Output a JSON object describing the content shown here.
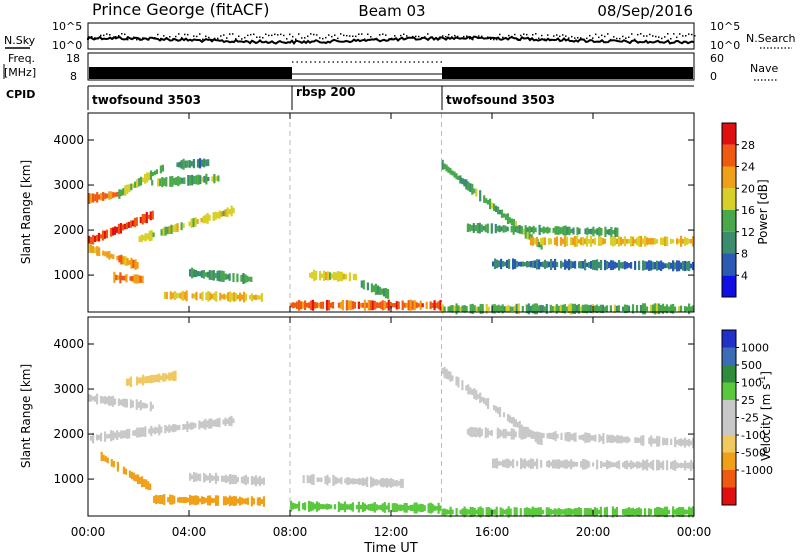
{
  "header": {
    "station": "Prince George (fitACF)",
    "beam": "Beam 03",
    "date": "08/Sep/2016"
  },
  "left_labels": {
    "nsky": "N.Sky",
    "freq_line1": "Freq.",
    "freq_line2": "[MHz]",
    "cpid": "CPID"
  },
  "right_labels": {
    "nsearch": "N.Search",
    "nave": "Nave"
  },
  "noise_axis": {
    "top": "10^5",
    "bottom": "10^0"
  },
  "freq_axis": {
    "top": "18",
    "bottom": "8"
  },
  "nave_axis": {
    "top": "60",
    "bottom": "0"
  },
  "cpid_segments": [
    {
      "label": "twofsound 3503",
      "start_hour": 0,
      "end_hour": 8
    },
    {
      "label": "rbsp 200",
      "start_hour": 8,
      "end_hour": 14
    },
    {
      "label": "twofsound 3503",
      "start_hour": 14,
      "end_hour": 24
    }
  ],
  "colors": {
    "power": [
      "#1010e6",
      "#2a5ab4",
      "#3c8c6e",
      "#49a84c",
      "#d8d028",
      "#f0a018",
      "#f05a10",
      "#e01010"
    ],
    "velocity": [
      "#e01010",
      "#f05a10",
      "#f0a018",
      "#f0c860",
      "#c8c8c8",
      "#c8c8c8",
      "#5ac83c",
      "#2e8c3c",
      "#3c6cb4",
      "#2030c8"
    ]
  },
  "chart_data": [
    {
      "type": "heatmap",
      "ylabel": "Slant Range [km]",
      "xlabel": "Time UT",
      "x_ticks": [
        "00:00",
        "04:00",
        "08:00",
        "12:00",
        "16:00",
        "20:00",
        "00:00"
      ],
      "xlim_hours": [
        0,
        24
      ],
      "y_ticks": [
        1000,
        2000,
        3000,
        4000
      ],
      "ylim": [
        180,
        4600
      ],
      "colorbar": {
        "label": "Power [dB]",
        "ticks": [
          4,
          8,
          12,
          16,
          20,
          24,
          28
        ],
        "range": [
          0,
          32
        ]
      },
      "features": [
        {
          "start": 0.0,
          "end": 2.6,
          "range_start": 1750,
          "range_end": 2350,
          "value": 28
        },
        {
          "start": 0.0,
          "end": 1.2,
          "range_start": 2700,
          "range_end": 2800,
          "value": 24
        },
        {
          "start": 1.2,
          "end": 3.0,
          "range_start": 2800,
          "range_end": 3400,
          "value": 16
        },
        {
          "start": 2.0,
          "end": 5.8,
          "range_start": 1800,
          "range_end": 2450,
          "value": 18
        },
        {
          "start": 0.0,
          "end": 2.0,
          "range_start": 1600,
          "range_end": 1200,
          "value": 22
        },
        {
          "start": 1.0,
          "end": 2.2,
          "range_start": 950,
          "range_end": 900,
          "value": 24
        },
        {
          "start": 2.5,
          "end": 5.2,
          "range_start": 3050,
          "range_end": 3150,
          "value": 14
        },
        {
          "start": 3.5,
          "end": 4.8,
          "range_start": 3450,
          "range_end": 3500,
          "value": 10
        },
        {
          "start": 3.0,
          "end": 7.0,
          "range_start": 550,
          "range_end": 500,
          "value": 20
        },
        {
          "start": 4.0,
          "end": 6.5,
          "range_start": 1050,
          "range_end": 900,
          "value": 12
        },
        {
          "start": 8.6,
          "end": 10.8,
          "range_start": 1000,
          "range_end": 950,
          "value": 18
        },
        {
          "start": 10.8,
          "end": 12.0,
          "range_start": 800,
          "range_end": 550,
          "value": 12
        },
        {
          "start": 8.0,
          "end": 14.0,
          "range_start": 330,
          "range_end": 330,
          "value": 26
        },
        {
          "start": 14.0,
          "end": 18.0,
          "range_start": 3450,
          "range_end": 1600,
          "value": 14
        },
        {
          "start": 15.0,
          "end": 21.0,
          "range_start": 2050,
          "range_end": 1950,
          "value": 12
        },
        {
          "start": 17.5,
          "end": 24.0,
          "range_start": 1750,
          "range_end": 1750,
          "value": 20
        },
        {
          "start": 16.0,
          "end": 24.0,
          "range_start": 1250,
          "range_end": 1200,
          "value": 8
        },
        {
          "start": 14.0,
          "end": 24.0,
          "range_start": 250,
          "range_end": 250,
          "value": 14
        }
      ]
    },
    {
      "type": "heatmap",
      "ylabel": "Slant Range [km]",
      "xlabel": "Time UT",
      "x_ticks": [
        "00:00",
        "04:00",
        "08:00",
        "12:00",
        "16:00",
        "20:00",
        "00:00"
      ],
      "xlim_hours": [
        0,
        24
      ],
      "y_ticks": [
        1000,
        2000,
        3000,
        4000
      ],
      "ylim": [
        180,
        4600
      ],
      "colorbar": {
        "label": "Velocity [m s-1]",
        "ticks": [
          "1000",
          "500",
          "100",
          "25",
          "-25",
          "-100",
          "-500",
          "-1000"
        ]
      },
      "features": [
        {
          "start": 0.0,
          "end": 2.6,
          "range_start": 2800,
          "range_end": 2600,
          "value": 0
        },
        {
          "start": 0.0,
          "end": 5.8,
          "range_start": 1900,
          "range_end": 2300,
          "value": 0
        },
        {
          "start": 1.5,
          "end": 3.5,
          "range_start": 3150,
          "range_end": 3300,
          "value": -80
        },
        {
          "start": 0.5,
          "end": 2.5,
          "range_start": 1500,
          "range_end": 800,
          "value": -400
        },
        {
          "start": 2.5,
          "end": 7.0,
          "range_start": 550,
          "range_end": 500,
          "value": -300
        },
        {
          "start": 4.0,
          "end": 7.0,
          "range_start": 1050,
          "range_end": 950,
          "value": -10
        },
        {
          "start": 8.5,
          "end": 12.5,
          "range_start": 1000,
          "range_end": 900,
          "value": 0
        },
        {
          "start": 8.0,
          "end": 14.0,
          "range_start": 400,
          "range_end": 350,
          "value": 80
        },
        {
          "start": 14.0,
          "end": 18.0,
          "range_start": 3400,
          "range_end": 1800,
          "value": 0
        },
        {
          "start": 15.0,
          "end": 24.0,
          "range_start": 2050,
          "range_end": 1800,
          "value": 0
        },
        {
          "start": 16.0,
          "end": 24.0,
          "range_start": 1350,
          "range_end": 1300,
          "value": 0
        },
        {
          "start": 14.0,
          "end": 24.0,
          "range_start": 270,
          "range_end": 270,
          "value": 60
        }
      ]
    }
  ]
}
